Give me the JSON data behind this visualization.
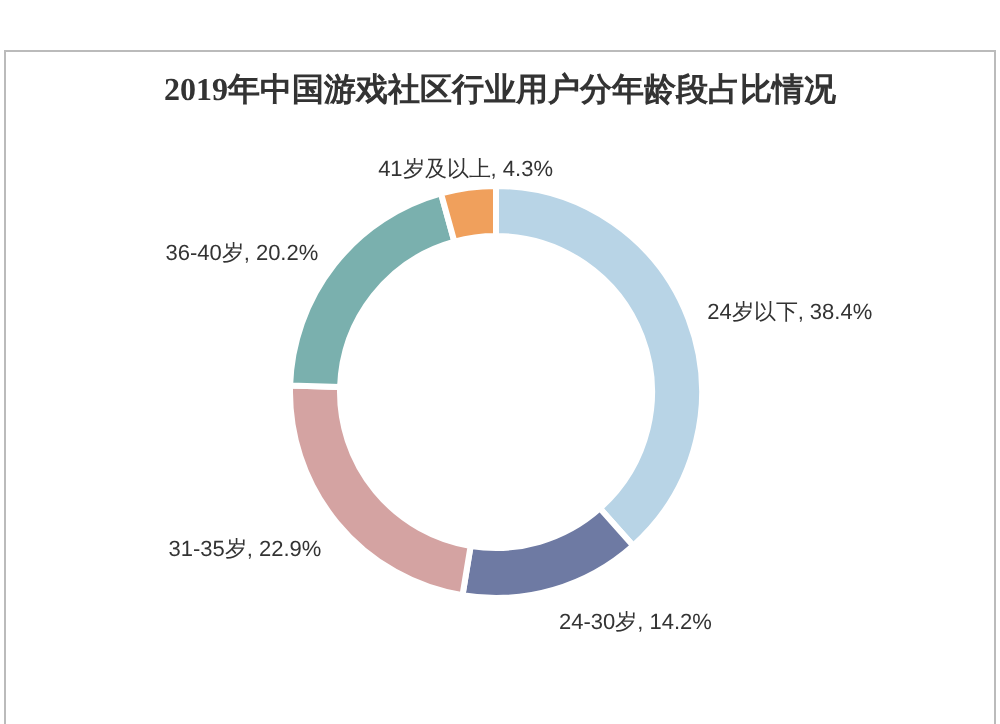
{
  "chart_data": {
    "type": "donut",
    "title": "2019年中国游戏社区行业用户分年龄段占比情况",
    "categories": [
      "24岁以下",
      "24-30岁",
      "31-35岁",
      "36-40岁",
      "41岁及以上"
    ],
    "values": [
      38.4,
      14.2,
      22.9,
      20.2,
      4.3
    ],
    "colors": [
      "#b8d4e6",
      "#6e7aa3",
      "#d4a3a2",
      "#7ab0ae",
      "#f0a05c"
    ],
    "value_labels": [
      "38.4%",
      "14.2%",
      "22.9%",
      "20.2%",
      "4.3%"
    ]
  }
}
